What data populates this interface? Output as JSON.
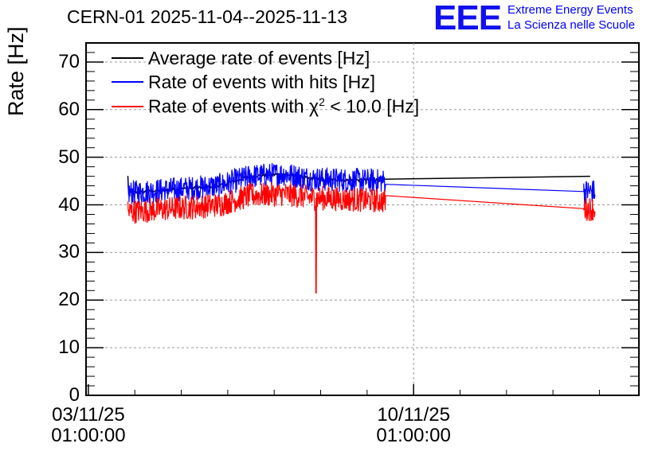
{
  "chart_data": {
    "type": "line",
    "title": "CERN-01 2025-11-04--2025-11-13",
    "ylabel": "Rate [Hz]",
    "xlabel": "",
    "ylim": [
      0,
      74
    ],
    "yticks": [
      "0",
      "10",
      "20",
      "30",
      "40",
      "50",
      "60",
      "70"
    ],
    "xticks": [
      {
        "date": "03/11/25",
        "time": "01:00:00",
        "day": 0
      },
      {
        "date": "10/11/25",
        "time": "01:00:00",
        "day": 7
      }
    ],
    "xlim_days": [
      -0.05,
      11.85
    ],
    "grid": true,
    "legend_position": "top-left",
    "series": [
      {
        "name": "Average rate of events [Hz]",
        "color": "#000000",
        "points": [
          [
            0.85,
            42.5
          ],
          [
            1.5,
            43
          ],
          [
            2.2,
            43.5
          ],
          [
            2.8,
            44
          ],
          [
            3.5,
            46
          ],
          [
            4.2,
            46.5
          ],
          [
            4.8,
            45.5
          ],
          [
            5.5,
            45.2
          ],
          [
            6.4,
            45.2
          ],
          [
            10.8,
            46.0
          ]
        ]
      },
      {
        "name": "Rate of events with hits [Hz]",
        "color": "#0000ff",
        "points": [
          [
            0.85,
            42.5
          ],
          [
            1.5,
            43
          ],
          [
            2.2,
            43.5
          ],
          [
            2.8,
            44
          ],
          [
            3.5,
            46
          ],
          [
            4.2,
            46.5
          ],
          [
            4.8,
            45.5
          ],
          [
            5.5,
            45.2
          ],
          [
            6.4,
            45.0
          ],
          [
            10.8,
            42.8
          ]
        ],
        "noise": 2.6
      },
      {
        "name": "Rate of events with χ² < 10.0 [Hz]",
        "legend_prefix": "Rate of events with ",
        "legend_chi": "χ",
        "legend_sup": "2",
        "legend_suffix": " < 10.0 [Hz]",
        "color": "#ff0000",
        "points": [
          [
            0.85,
            38.5
          ],
          [
            1.5,
            39
          ],
          [
            2.2,
            39.5
          ],
          [
            2.8,
            40
          ],
          [
            3.5,
            42
          ],
          [
            4.2,
            42.3
          ],
          [
            4.8,
            41.5
          ],
          [
            5.5,
            41.2
          ],
          [
            6.4,
            40.8
          ],
          [
            10.8,
            39.2
          ]
        ],
        "noise": 2.6,
        "spike": {
          "day": 4.9,
          "value": 21.5
        }
      }
    ]
  },
  "logo": {
    "mark": "EEE",
    "line1": "Extreme Energy Events",
    "line2": "La Scienza nelle Scuole"
  }
}
